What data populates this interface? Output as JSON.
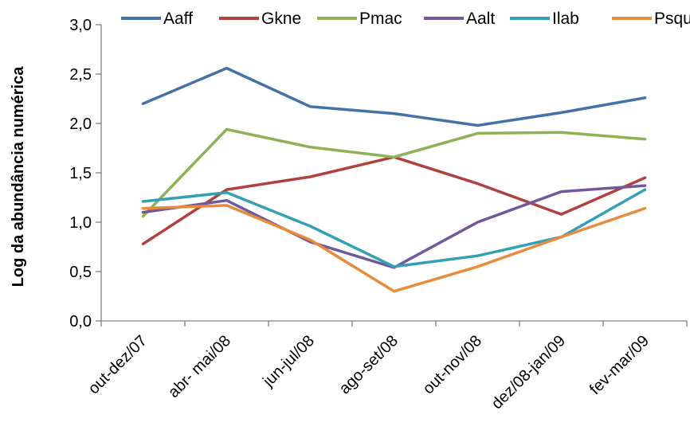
{
  "chart_data": {
    "type": "line",
    "title": "",
    "xlabel": "",
    "ylabel": "Log da abundância  numérica",
    "ylim": [
      0,
      3
    ],
    "yticks": [
      "0,0",
      "0,5",
      "1,0",
      "1,5",
      "2,0",
      "2,5",
      "3,0"
    ],
    "grid": false,
    "legend_position": "top",
    "categories": [
      "out-dez/07",
      "abr- mai/08",
      "jun-jul/08",
      "ago-set/08",
      "out-nov/08",
      "dez/08-jan/09",
      "fev-mar/09"
    ],
    "series": [
      {
        "name": "Aaff",
        "color": "#4472a8",
        "values": [
          2.2,
          2.56,
          2.17,
          2.1,
          1.98,
          2.11,
          2.26
        ]
      },
      {
        "name": "Gkne",
        "color": "#b0413e",
        "values": [
          0.78,
          1.33,
          1.46,
          1.66,
          1.39,
          1.08,
          1.45
        ]
      },
      {
        "name": "Pmac",
        "color": "#8db255",
        "values": [
          1.06,
          1.94,
          1.76,
          1.66,
          1.9,
          1.91,
          1.84
        ]
      },
      {
        "name": "Aalt",
        "color": "#71589a",
        "values": [
          1.1,
          1.22,
          0.8,
          0.54,
          1.0,
          1.31,
          1.37
        ]
      },
      {
        "name": "Ilab",
        "color": "#34a0b5",
        "values": [
          1.21,
          1.3,
          0.96,
          0.55,
          0.66,
          0.85,
          1.33
        ]
      },
      {
        "name": "Psqu",
        "color": "#e88b3a",
        "values": [
          1.14,
          1.17,
          0.82,
          0.3,
          0.55,
          0.85,
          1.14
        ]
      }
    ]
  }
}
